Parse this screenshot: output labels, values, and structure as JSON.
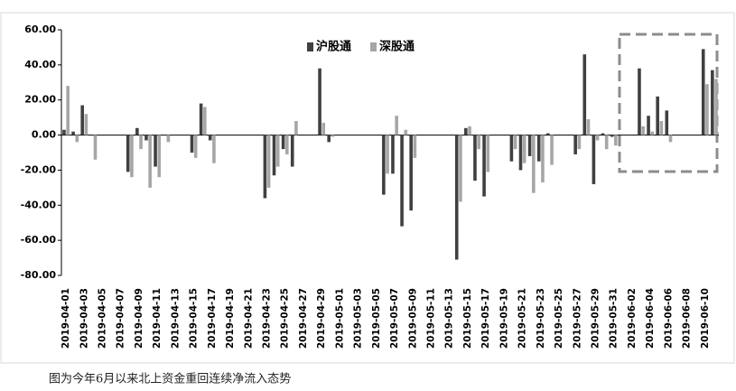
{
  "chart_data": {
    "type": "bar",
    "categories": [
      "2019-04-01",
      null,
      "2019-04-03",
      null,
      "2019-04-05",
      null,
      "2019-04-07",
      null,
      "2019-04-09",
      null,
      "2019-04-11",
      null,
      "2019-04-13",
      null,
      "2019-04-15",
      null,
      "2019-04-17",
      null,
      "2019-04-19",
      null,
      "2019-04-21",
      null,
      "2019-04-23",
      null,
      "2019-04-25",
      null,
      "2019-04-27",
      null,
      "2019-04-29",
      null,
      "2019-05-01",
      null,
      "2019-05-03",
      null,
      "2019-05-05",
      null,
      "2019-05-07",
      null,
      "2019-05-09",
      null,
      "2019-05-11",
      null,
      "2019-05-13",
      null,
      "2019-05-15",
      null,
      "2019-05-17",
      null,
      "2019-05-19",
      null,
      "2019-05-21",
      null,
      "2019-05-23",
      null,
      "2019-05-25",
      null,
      "2019-05-27",
      null,
      "2019-05-29",
      null,
      "2019-05-31",
      null,
      "2019-06-02",
      null,
      "2019-06-04",
      null,
      "2019-06-06",
      null,
      "2019-06-08",
      null,
      "2019-06-10",
      null
    ],
    "series": [
      {
        "name": "沪股通",
        "color": "#404040",
        "values": [
          3,
          2,
          17,
          0,
          null,
          null,
          null,
          -21,
          4,
          -3,
          -18,
          0,
          null,
          null,
          -10,
          18,
          -3,
          0,
          null,
          null,
          null,
          null,
          -36,
          -23,
          -8,
          -18,
          null,
          null,
          38,
          -4,
          null,
          null,
          null,
          null,
          null,
          -34,
          -22,
          -52,
          -43,
          0,
          null,
          null,
          null,
          -71,
          4,
          -26,
          -35,
          null,
          null,
          -15,
          -20,
          -12,
          -15,
          1,
          null,
          null,
          -11,
          46,
          -28,
          1,
          -1,
          null,
          null,
          38,
          11,
          22,
          14,
          null,
          null,
          null,
          49,
          37
        ]
      },
      {
        "name": "深股通",
        "color": "#a6a6a6",
        "values": [
          28,
          -4,
          12,
          -14,
          null,
          null,
          null,
          -24,
          -8,
          -30,
          -24,
          -4,
          null,
          null,
          -13,
          16,
          -16,
          0,
          null,
          null,
          null,
          null,
          -30,
          -18,
          -11,
          8,
          null,
          null,
          7,
          -1,
          null,
          null,
          null,
          null,
          null,
          -22,
          11,
          3,
          -13,
          0,
          null,
          null,
          null,
          -38,
          5,
          -8,
          -21,
          null,
          null,
          -8,
          -16,
          -33,
          -27,
          -17,
          null,
          null,
          -8,
          9,
          -3,
          -8,
          -6,
          null,
          null,
          5,
          2,
          8,
          -4,
          null,
          null,
          null,
          29,
          32
        ]
      }
    ],
    "ylim": [
      -80,
      60
    ],
    "yticks": [
      {
        "value": -80,
        "label": "-80.00"
      },
      {
        "value": -60,
        "label": "-60.00"
      },
      {
        "value": -40,
        "label": "-40.00"
      },
      {
        "value": -20,
        "label": "-20.00"
      },
      {
        "value": 0,
        "label": "0.00"
      },
      {
        "value": 20,
        "label": "20.00"
      },
      {
        "value": 40,
        "label": "40.00"
      },
      {
        "value": 60,
        "label": "60.00"
      }
    ],
    "caption": "图为今年6月以来北上资金重回连续净流入态势"
  }
}
